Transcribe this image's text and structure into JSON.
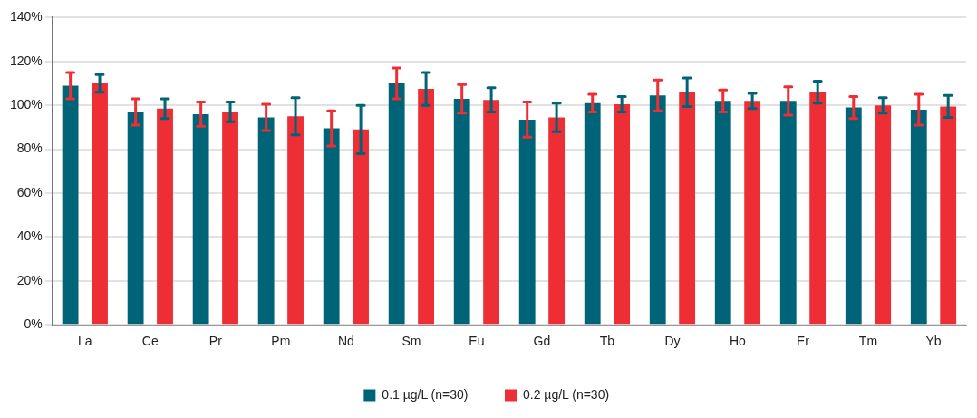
{
  "chart_data": {
    "type": "bar",
    "categories": [
      "La",
      "Ce",
      "Pr",
      "Pm",
      "Nd",
      "Sm",
      "Eu",
      "Gd",
      "Tb",
      "Dy",
      "Ho",
      "Er",
      "Tm",
      "Yb"
    ],
    "series": [
      {
        "name": "0.1 µg/L (n=30)",
        "color": "#006478",
        "values": [
          109,
          97,
          96,
          94.5,
          89.5,
          110,
          103,
          93.5,
          101,
          104.5,
          102,
          102,
          99,
          98
        ],
        "errors": [
          6,
          6,
          5.5,
          6,
          8,
          7,
          6.5,
          8,
          4,
          7,
          5,
          6.5,
          5,
          7
        ]
      },
      {
        "name": "0.2 µg/L (n=30)",
        "color": "#ee2e35",
        "values": [
          110,
          98.5,
          97,
          95,
          89,
          107.5,
          102.5,
          94.5,
          100.5,
          106,
          102,
          106,
          100,
          99.5
        ],
        "errors": [
          4,
          4.5,
          4.5,
          8.5,
          11,
          7.5,
          5.5,
          6.5,
          3.5,
          6.5,
          3.5,
          5,
          3.5,
          5
        ]
      }
    ],
    "ylim": [
      0,
      140
    ],
    "yticks": [
      {
        "value": 0,
        "label": "0%"
      },
      {
        "value": 20,
        "label": "20%"
      },
      {
        "value": 40,
        "label": "40%"
      },
      {
        "value": 60,
        "label": "60%"
      },
      {
        "value": 80,
        "label": "80%"
      },
      {
        "value": 100,
        "label": "100%"
      },
      {
        "value": 120,
        "label": "120%"
      },
      {
        "value": 140,
        "label": "140%"
      }
    ],
    "grid": "y",
    "legend": "bottom"
  }
}
